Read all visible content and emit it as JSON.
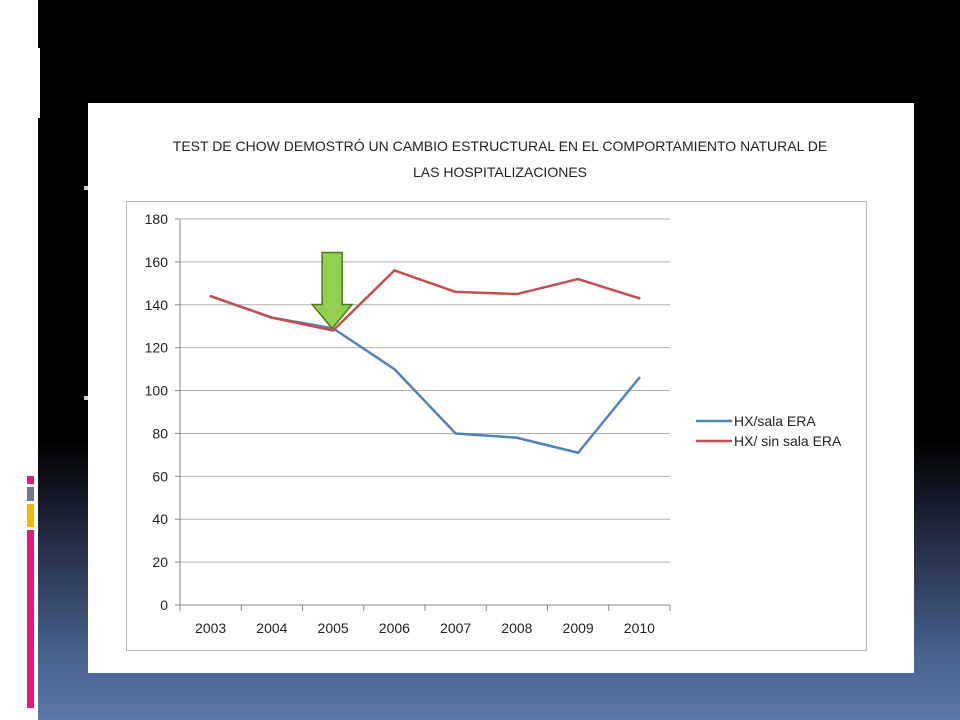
{
  "colors": {
    "series_1": "#4f81bd",
    "series_2": "#c0504d",
    "arrow_fill": "#92d050",
    "arrow_stroke": "#4e7a1a",
    "grid": "#b0b0b0",
    "accent_pink": "#e01a82",
    "accent_gray": "#6a7a8a",
    "accent_yellow": "#f5b800"
  },
  "chart_data": {
    "type": "line",
    "title": "TEST DE CHOW DEMOSTRÓ UN CAMBIO ESTRUCTURAL EN EL COMPORTAMIENTO NATURAL DE LAS HOSPITALIZACIONES",
    "title_lines": [
      "TEST DE CHOW DEMOSTRÓ UN CAMBIO ESTRUCTURAL EN EL COMPORTAMIENTO NATURAL DE",
      "LAS HOSPITALIZACIONES"
    ],
    "categories": [
      "2003",
      "2004",
      "2005",
      "2006",
      "2007",
      "2008",
      "2009",
      "2010"
    ],
    "series": [
      {
        "name": "HX/sala ERA",
        "values": [
          144,
          134,
          129,
          110,
          80,
          78,
          71,
          106
        ]
      },
      {
        "name": "HX/ sin sala ERA",
        "values": [
          144,
          134,
          128,
          156,
          146,
          145,
          152,
          143
        ]
      }
    ],
    "ylim": [
      0,
      180
    ],
    "yticks": [
      0,
      20,
      40,
      60,
      80,
      100,
      120,
      140,
      160,
      180
    ],
    "grid": true,
    "legend_position": "right",
    "annotation": {
      "type": "down-arrow",
      "category": "2005"
    }
  }
}
